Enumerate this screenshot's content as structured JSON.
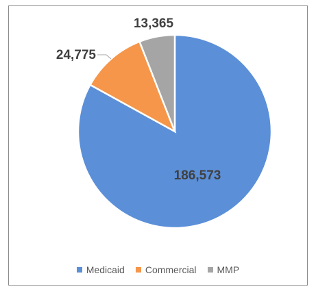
{
  "chart_data": {
    "type": "pie",
    "categories": [
      "Medicaid",
      "Commercial",
      "MMP"
    ],
    "values": [
      186573,
      24775,
      13365
    ],
    "data_labels": [
      "186,573",
      "24,775",
      "13,365"
    ],
    "colors": [
      "#5b8fd8",
      "#f5964a",
      "#a5a5a5"
    ],
    "legend_position": "bottom",
    "start_angle": "12 o'clock",
    "direction": "clockwise"
  }
}
